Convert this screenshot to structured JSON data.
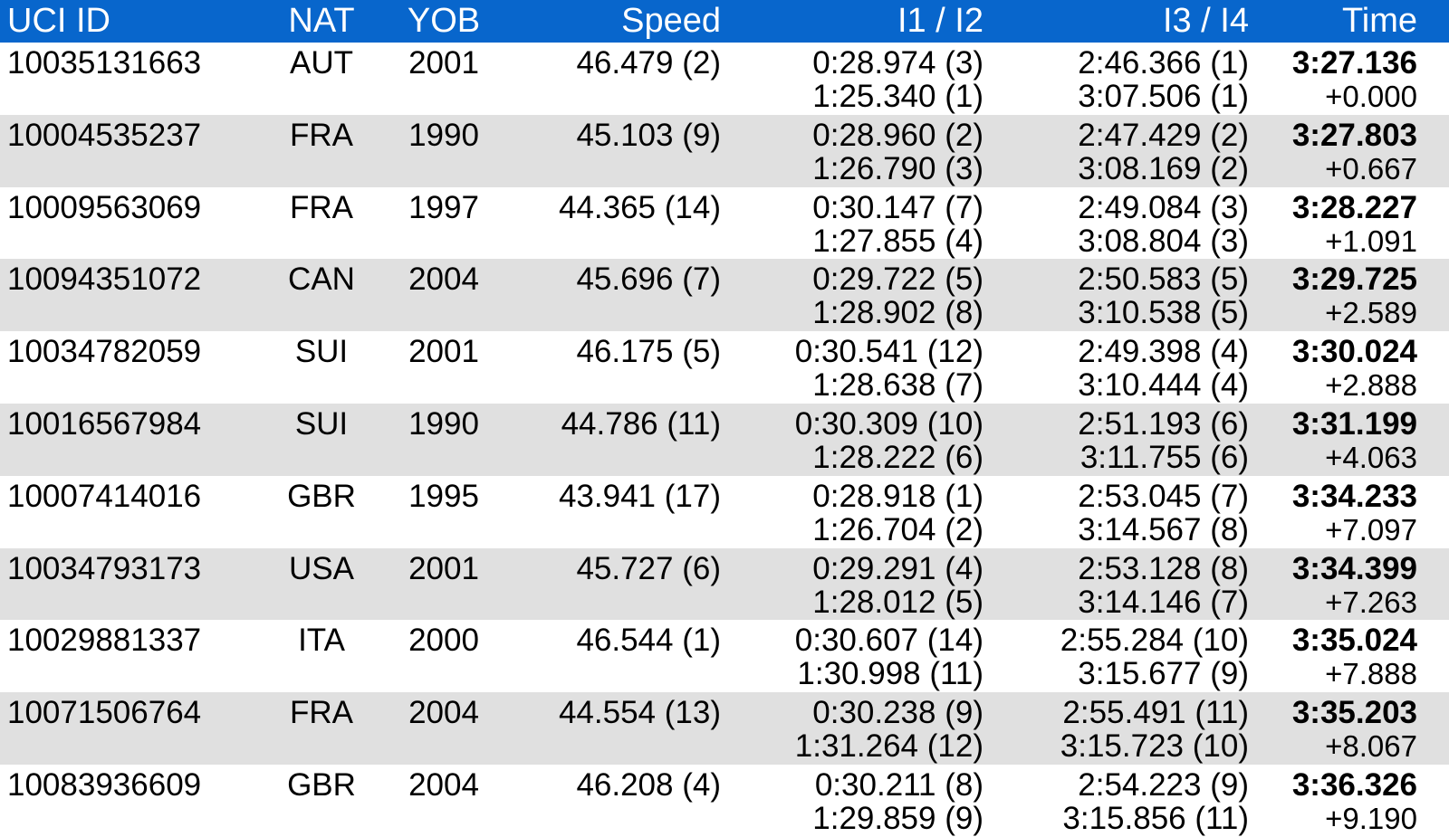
{
  "colors": {
    "header_bg": "#0866cc",
    "header_text": "#ffffff",
    "row_alt_bg": "#e0e0e0",
    "text": "#000000"
  },
  "header": {
    "uci_id": "UCI ID",
    "nat": "NAT",
    "yob": "YOB",
    "speed": "Speed",
    "i12": "I1 / I2",
    "i34": "I3 / I4",
    "time": "Time"
  },
  "rows": [
    {
      "uci": "10035131663",
      "nat": "AUT",
      "yob": "2001",
      "speed": "46.479 (2)",
      "i1": "0:28.974 (3)",
      "i2": "1:25.340 (1)",
      "i3": "2:46.366 (1)",
      "i4": "3:07.506 (1)",
      "time": "3:27.136",
      "diff": "+0.000"
    },
    {
      "uci": "10004535237",
      "nat": "FRA",
      "yob": "1990",
      "speed": "45.103 (9)",
      "i1": "0:28.960 (2)",
      "i2": "1:26.790 (3)",
      "i3": "2:47.429 (2)",
      "i4": "3:08.169 (2)",
      "time": "3:27.803",
      "diff": "+0.667"
    },
    {
      "uci": "10009563069",
      "nat": "FRA",
      "yob": "1997",
      "speed": "44.365 (14)",
      "i1": "0:30.147 (7)",
      "i2": "1:27.855 (4)",
      "i3": "2:49.084 (3)",
      "i4": "3:08.804 (3)",
      "time": "3:28.227",
      "diff": "+1.091"
    },
    {
      "uci": "10094351072",
      "nat": "CAN",
      "yob": "2004",
      "speed": "45.696 (7)",
      "i1": "0:29.722 (5)",
      "i2": "1:28.902 (8)",
      "i3": "2:50.583 (5)",
      "i4": "3:10.538 (5)",
      "time": "3:29.725",
      "diff": "+2.589"
    },
    {
      "uci": "10034782059",
      "nat": "SUI",
      "yob": "2001",
      "speed": "46.175 (5)",
      "i1": "0:30.541 (12)",
      "i2": "1:28.638 (7)",
      "i3": "2:49.398 (4)",
      "i4": "3:10.444 (4)",
      "time": "3:30.024",
      "diff": "+2.888"
    },
    {
      "uci": "10016567984",
      "nat": "SUI",
      "yob": "1990",
      "speed": "44.786 (11)",
      "i1": "0:30.309 (10)",
      "i2": "1:28.222 (6)",
      "i3": "2:51.193 (6)",
      "i4": "3:11.755 (6)",
      "time": "3:31.199",
      "diff": "+4.063"
    },
    {
      "uci": "10007414016",
      "nat": "GBR",
      "yob": "1995",
      "speed": "43.941 (17)",
      "i1": "0:28.918 (1)",
      "i2": "1:26.704 (2)",
      "i3": "2:53.045 (7)",
      "i4": "3:14.567 (8)",
      "time": "3:34.233",
      "diff": "+7.097"
    },
    {
      "uci": "10034793173",
      "nat": "USA",
      "yob": "2001",
      "speed": "45.727 (6)",
      "i1": "0:29.291 (4)",
      "i2": "1:28.012 (5)",
      "i3": "2:53.128 (8)",
      "i4": "3:14.146 (7)",
      "time": "3:34.399",
      "diff": "+7.263"
    },
    {
      "uci": "10029881337",
      "nat": "ITA",
      "yob": "2000",
      "speed": "46.544 (1)",
      "i1": "0:30.607 (14)",
      "i2": "1:30.998 (11)",
      "i3": "2:55.284 (10)",
      "i4": "3:15.677 (9)",
      "time": "3:35.024",
      "diff": "+7.888"
    },
    {
      "uci": "10071506764",
      "nat": "FRA",
      "yob": "2004",
      "speed": "44.554 (13)",
      "i1": "0:30.238 (9)",
      "i2": "1:31.264 (12)",
      "i3": "2:55.491 (11)",
      "i4": "3:15.723 (10)",
      "time": "3:35.203",
      "diff": "+8.067"
    },
    {
      "uci": "10083936609",
      "nat": "GBR",
      "yob": "2004",
      "speed": "46.208 (4)",
      "i1": "0:30.211 (8)",
      "i2": "1:29.859 (9)",
      "i3": "2:54.223 (9)",
      "i4": "3:15.856 (11)",
      "time": "3:36.326",
      "diff": "+9.190"
    }
  ]
}
